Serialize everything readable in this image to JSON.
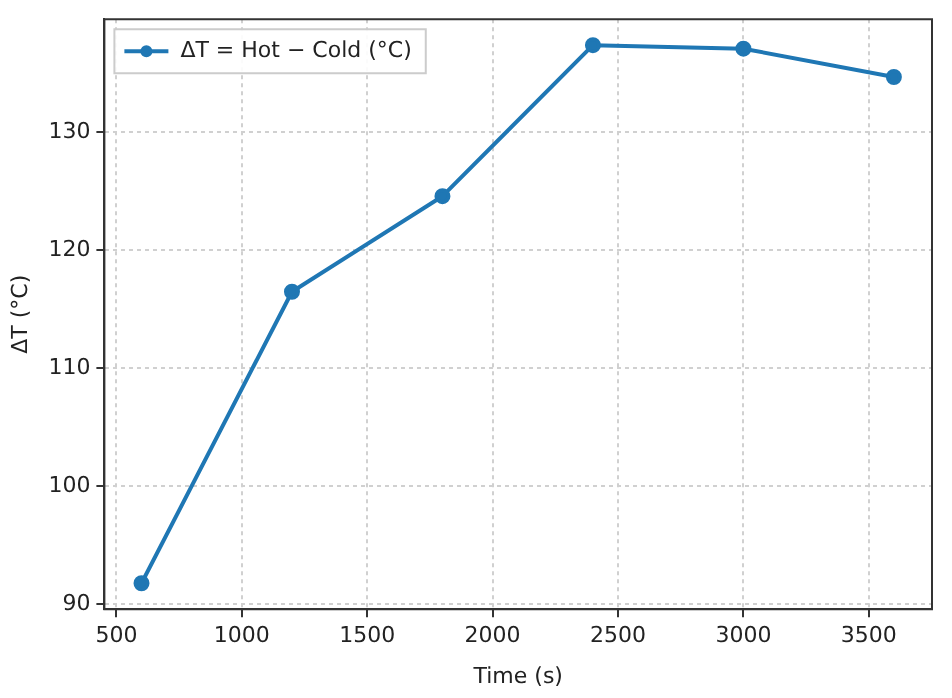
{
  "chart_data": {
    "type": "line",
    "xlabel": "Time (s)",
    "ylabel": "ΔT (°C)",
    "x": [
      600,
      1200,
      1800,
      2400,
      3000,
      3600
    ],
    "series": [
      {
        "name": "ΔT = Hot − Cold (°C)",
        "color": "#1f77b4",
        "values": [
          91.8,
          116.5,
          124.6,
          137.4,
          137.1,
          134.7
        ]
      }
    ],
    "xlim": [
      452,
      3752
    ],
    "xticks": [
      500,
      1000,
      1500,
      2000,
      2500,
      3000,
      3500
    ],
    "ylim": [
      89.6,
      139.6
    ],
    "yticks": [
      90,
      100,
      110,
      120,
      130
    ],
    "grid": true,
    "legend": "top left",
    "marker": "circle",
    "line_style": "solid"
  }
}
